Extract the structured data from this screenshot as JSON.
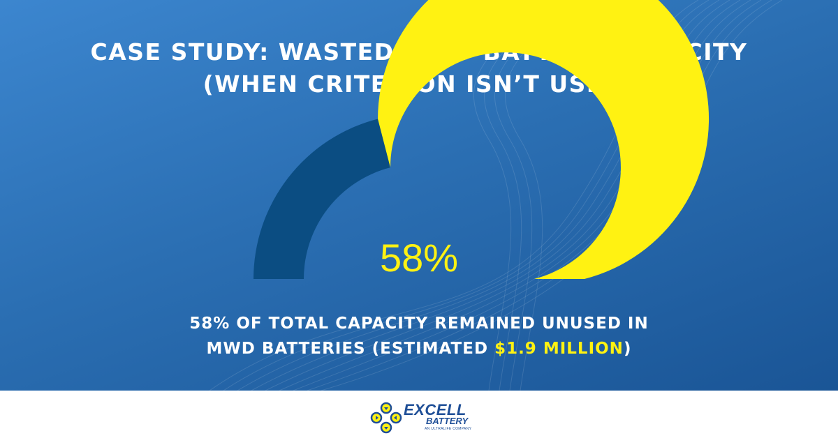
{
  "header": {
    "title_line1": "CASE STUDY: WASTED MWD BATTERY CAPACITY",
    "title_line2": "(WHEN CRITERION ISN’T USED)"
  },
  "chart_data": {
    "type": "pie",
    "style": "half-donut gauge",
    "values": [
      42,
      58
    ],
    "highlight_value": 58,
    "label": "58%",
    "colors": [
      "#0b4d82",
      "#fff212"
    ]
  },
  "caption": {
    "line1": "58% OF TOTAL CAPACITY REMAINED UNUSED IN",
    "line2_prefix": "MWD BATTERIES (ESTIMATED ",
    "line2_highlight": "$1.9 MILLION",
    "line2_suffix": ")"
  },
  "footer": {
    "brand_name": "EXCELL",
    "brand_sub": "BATTERY",
    "brand_tag": "AN ULTRALIFE COMPANY",
    "logo_icon": "battery-cells-logo-icon"
  },
  "colors": {
    "background_top": "#3c86cf",
    "background_bottom": "#1a5596",
    "accent": "#fff212",
    "gauge_dark": "#0b4d82",
    "brand": "#1f4f97"
  }
}
